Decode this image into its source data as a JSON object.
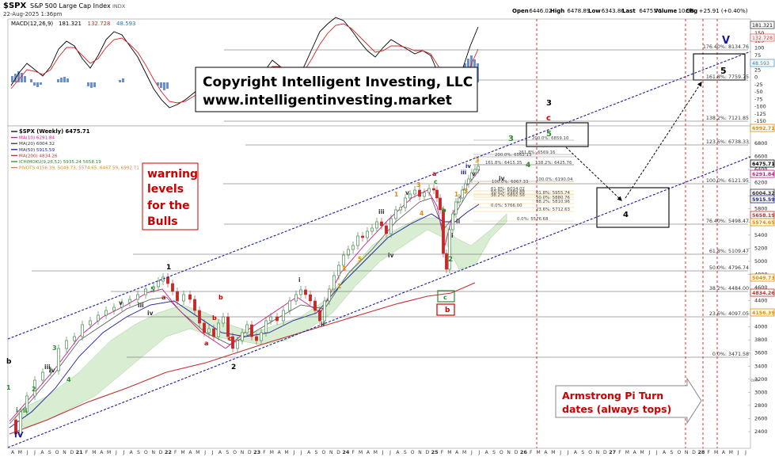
{
  "header": {
    "symbol": "$SPX",
    "name": "S&P 500 Large Cap Index",
    "exchange": "INDX",
    "datetime": "22-Aug-2025 1:36pm",
    "ohlc": [
      {
        "label": "Open",
        "value": "6446.02"
      },
      {
        "label": "High",
        "value": "6478.89"
      },
      {
        "label": "Low",
        "value": "6343.86"
      },
      {
        "label": "Last",
        "value": "6475.71"
      },
      {
        "label": "Volume",
        "value": "10.9B"
      },
      {
        "label": "Chg",
        "value": "+25.91 (+0.40%)"
      }
    ],
    "watermark": "© StockCharts.com"
  },
  "macd": {
    "legend_prefix": "MACD(12,26,9)",
    "legend_values": [
      "181.321",
      "132.728",
      "48.593"
    ],
    "legend_colors": [
      "#000000",
      "#d62728",
      "#1f77b4"
    ],
    "ticks": [
      "175",
      "150",
      "125",
      "100",
      "75",
      "50",
      "25",
      "0",
      "-25",
      "-50",
      "-75",
      "-100",
      "-125",
      "-150"
    ],
    "badges": [
      {
        "text": "181.321",
        "bg": "#ffffff",
        "fg": "#000000"
      },
      {
        "text": "132.728",
        "bg": "#ffffff",
        "fg": "#d62728"
      },
      {
        "text": "48.593",
        "bg": "#ffffff",
        "fg": "#1f77b4"
      }
    ]
  },
  "copyright": {
    "line1": "Copyright Intelligent Investing, LLC",
    "line2": "www.intelligentinvesting.market"
  },
  "main": {
    "legend": [
      {
        "text": "$SPX (Weekly) 6475.71",
        "color": "#000000"
      },
      {
        "text": "MA(10) 6291.84",
        "color": "#d4148c"
      },
      {
        "text": "MA(20) 6004.32",
        "color": "#333333"
      },
      {
        "text": "MA(50) 5915.59",
        "color": "#1a1aa0"
      },
      {
        "text": "MA(200) 4834.26",
        "color": "#c03030"
      },
      {
        "text": "ICHIMOKU(9,26,52) 5935.24 5658.19",
        "color": "#2e8b2e"
      },
      {
        "text": "PIVOTS 4156.39, 5049.73, 5574.65, 6467.59, 6992.71",
        "color": "#e08a00"
      }
    ],
    "y_ticks": [
      "6800",
      "6600",
      "6400",
      "6200",
      "6000",
      "5800",
      "5600",
      "5400",
      "5200",
      "5000",
      "4800",
      "4600",
      "4400",
      "4200",
      "4000",
      "3800",
      "3600",
      "3400",
      "3200",
      "3000",
      "2800",
      "2600",
      "2400"
    ],
    "price_badges": [
      {
        "text": "6992.71",
        "bg": "#ffffff",
        "border": "#e08a00",
        "fg": "#e08a00"
      },
      {
        "text": "6475.71",
        "bg": "#ffffff",
        "border": "#000000",
        "fg": "#000000"
      },
      {
        "text": "6291.84",
        "bg": "#ffffff",
        "border": "#d4148c",
        "fg": "#d4148c"
      },
      {
        "text": "6004.32",
        "bg": "#ffffff",
        "border": "#333333",
        "fg": "#333333"
      },
      {
        "text": "5915.59",
        "bg": "#ffffff",
        "border": "#1a1aa0",
        "fg": "#1a1aa0"
      },
      {
        "text": "5658.19",
        "bg": "#ffffff",
        "border": "#c03030",
        "fg": "#c03030"
      },
      {
        "text": "5574.65",
        "bg": "#ffffff",
        "border": "#e08a00",
        "fg": "#e08a00"
      },
      {
        "text": "5049.73",
        "bg": "#ffffff",
        "border": "#e08a00",
        "fg": "#e08a00"
      },
      {
        "text": "4834.26",
        "bg": "#ffffff",
        "border": "#c03030",
        "fg": "#c03030"
      },
      {
        "text": "4156.39",
        "bg": "#ffffff",
        "border": "#e08a00",
        "fg": "#e08a00"
      }
    ],
    "x_ticks": [
      "A",
      "M",
      "J",
      "J",
      "A",
      "S",
      "O",
      "N",
      "D",
      "21",
      "F",
      "M",
      "A",
      "M",
      "J",
      "J",
      "A",
      "S",
      "O",
      "N",
      "D",
      "22",
      "F",
      "M",
      "A",
      "M",
      "J",
      "J",
      "A",
      "S",
      "O",
      "N",
      "D",
      "23",
      "F",
      "M",
      "A",
      "M",
      "J",
      "J",
      "A",
      "S",
      "O",
      "N",
      "D",
      "24",
      "F",
      "M",
      "A",
      "M",
      "J",
      "J",
      "A",
      "S",
      "O",
      "N",
      "D",
      "25",
      "F",
      "M",
      "A",
      "M",
      "J",
      "J",
      "A",
      "S",
      "O",
      "N",
      "D",
      "26",
      "F",
      "M",
      "A",
      "M",
      "J",
      "J",
      "A",
      "S",
      "O",
      "N",
      "D",
      "27",
      "F",
      "M",
      "A",
      "M",
      "J",
      "J",
      "A",
      "S",
      "O",
      "N",
      "D",
      "28",
      "F",
      "M",
      "A",
      "M",
      "J",
      "J"
    ]
  },
  "fib_levels": [
    {
      "text": "176.40%: 8134.76"
    },
    {
      "text": "161.8%: 7759.75"
    },
    {
      "text": "138.2%: 7121.85"
    },
    {
      "text": "123.6%: 6738.33"
    },
    {
      "text": "100.0%: 6121.95"
    },
    {
      "text": "76.40%: 5498.47"
    },
    {
      "text": "61.8%: 5109.47"
    },
    {
      "text": "50.0%: 4796.74"
    },
    {
      "text": "38.2%: 4484.00"
    },
    {
      "text": "23.6%: 4097.05"
    },
    {
      "text": "0.0%: 3471.58"
    }
  ],
  "inner_fibs": [
    {
      "text": "200.0%: 6859.10"
    },
    {
      "text": "261.8%: 6569.16"
    },
    {
      "text": "200.0%: 6562.13"
    },
    {
      "text": "161.8%: 6415.35"
    },
    {
      "text": "138.2%: 6425.76"
    },
    {
      "text": "100.0%: 6190.04"
    },
    {
      "text": "100.0%: 6067.33"
    },
    {
      "text": "61.8%: 6014.02"
    },
    {
      "text": "50.0%: 5989.88"
    },
    {
      "text": "38.2%: 5892.56"
    },
    {
      "text": "61.8%: 5955.74"
    },
    {
      "text": "50.0%: 5880.76"
    },
    {
      "text": "38.2%: 5810.96"
    },
    {
      "text": "0.0%: 5766.00"
    },
    {
      "text": "23.6%: 5712.63"
    },
    {
      "text": "0.0%: 5576.68"
    }
  ],
  "wave_labels": [
    {
      "text": "b"
    },
    {
      "text": "i"
    },
    {
      "text": "ii"
    },
    {
      "text": "iii"
    },
    {
      "text": "iv"
    },
    {
      "text": "v"
    },
    {
      "text": "IV"
    },
    {
      "text": "1"
    },
    {
      "text": "2"
    },
    {
      "text": "3"
    },
    {
      "text": "4"
    },
    {
      "text": "5"
    },
    {
      "text": "iii"
    },
    {
      "text": "iv"
    },
    {
      "text": "1"
    },
    {
      "text": "a"
    },
    {
      "text": "b"
    },
    {
      "text": "c"
    },
    {
      "text": "a"
    },
    {
      "text": "b"
    },
    {
      "text": "2"
    },
    {
      "text": "i"
    },
    {
      "text": "ii"
    },
    {
      "text": "iii"
    },
    {
      "text": "iv"
    },
    {
      "text": "v"
    },
    {
      "text": "3"
    },
    {
      "text": "a"
    },
    {
      "text": "b"
    },
    {
      "text": "c"
    },
    {
      "text": "2"
    },
    {
      "text": "c"
    },
    {
      "text": "b"
    },
    {
      "text": "i"
    },
    {
      "text": "ii"
    },
    {
      "text": "iii"
    },
    {
      "text": "iv"
    },
    {
      "text": "v"
    },
    {
      "text": "3"
    },
    {
      "text": "iv"
    },
    {
      "text": "3"
    },
    {
      "text": "4"
    },
    {
      "text": "5"
    },
    {
      "text": "3"
    },
    {
      "text": "c"
    },
    {
      "text": "4"
    },
    {
      "text": "5"
    },
    {
      "text": "V"
    }
  ],
  "annotations": {
    "warning": [
      "warning",
      "levels",
      "for the",
      "Bulls"
    ],
    "armstrong": [
      "Armstrong Pi Turn",
      "dates (always tops)"
    ]
  },
  "colors": {
    "channel": "#1a1aa0",
    "turn_dates": "#cc0000",
    "candle_up": "#2e7d32",
    "candle_down": "#c62828",
    "cloud": "#cfe8c8"
  }
}
